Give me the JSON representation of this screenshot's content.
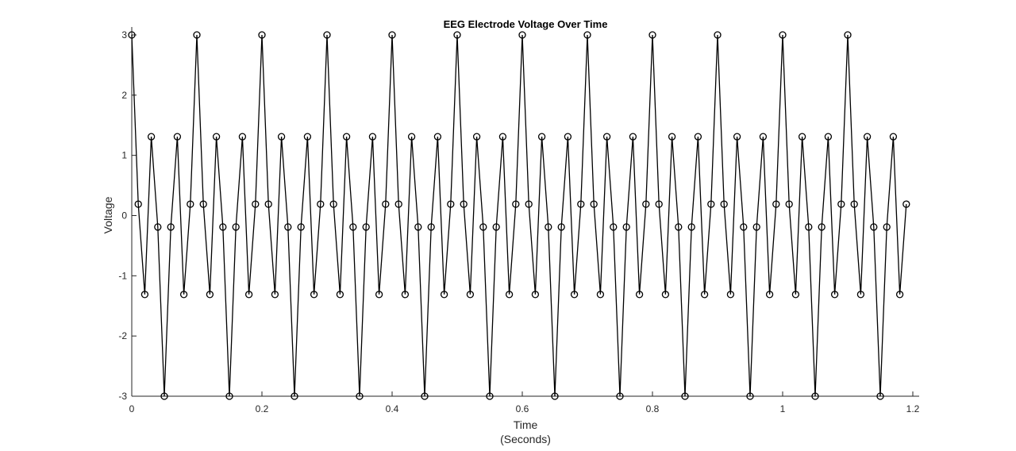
{
  "chart_data": {
    "type": "line",
    "title": "EEG Electrode Voltage Over Time",
    "xlabel": "Time",
    "xlabel_sub": "(Seconds)",
    "ylabel": "Voltage",
    "xlim": [
      0,
      1.2
    ],
    "ylim": [
      -3,
      3
    ],
    "xticks": [
      0,
      0.2,
      0.4,
      0.6,
      0.8,
      1,
      1.2
    ],
    "xtick_labels": [
      "0",
      "0.2",
      "0.4",
      "0.6",
      "0.8",
      "1",
      "1.2"
    ],
    "yticks": [
      -3,
      -2,
      -1,
      0,
      1,
      2,
      3
    ],
    "ytick_labels": [
      "-3",
      "-2",
      "-1",
      "0",
      "1",
      "2",
      "3"
    ],
    "grid": false,
    "marker": "circle",
    "line_color": "#000000",
    "series": [
      {
        "x": [
          0,
          0.01,
          0.02,
          0.03,
          0.04,
          0.05,
          0.06,
          0.07,
          0.08,
          0.09,
          0.1,
          0.11,
          0.12,
          0.13,
          0.14,
          0.15,
          0.16,
          0.17,
          0.18,
          0.19,
          0.2,
          0.21,
          0.22,
          0.23,
          0.24,
          0.25,
          0.26,
          0.27,
          0.28,
          0.29,
          0.3,
          0.31,
          0.32,
          0.33,
          0.34,
          0.35,
          0.36,
          0.37,
          0.38,
          0.39,
          0.4,
          0.41,
          0.42,
          0.43,
          0.44,
          0.45,
          0.46,
          0.47,
          0.48,
          0.49,
          0.5,
          0.51,
          0.52,
          0.53,
          0.54,
          0.55,
          0.56,
          0.57,
          0.58,
          0.59,
          0.6,
          0.61,
          0.62,
          0.63,
          0.64,
          0.65,
          0.66,
          0.67,
          0.68,
          0.69,
          0.7,
          0.71,
          0.72,
          0.73,
          0.74,
          0.75,
          0.76,
          0.77,
          0.78,
          0.79,
          0.8,
          0.81,
          0.82,
          0.83,
          0.84,
          0.85,
          0.86,
          0.87,
          0.88,
          0.89,
          0.9,
          0.91,
          0.92,
          0.93,
          0.94,
          0.95,
          0.96,
          0.97,
          0.98,
          0.99,
          1,
          1.01,
          1.02,
          1.03,
          1.04,
          1.05,
          1.06,
          1.07,
          1.08,
          1.09,
          1.1,
          1.11,
          1.12,
          1.13,
          1.14,
          1.15,
          1.16,
          1.17,
          1.18,
          1.19
        ],
        "y": [
          3,
          0.19,
          -1.31,
          1.31,
          -0.19,
          -3,
          -0.19,
          1.31,
          -1.31,
          0.19,
          3,
          0.19,
          -1.31,
          1.31,
          -0.19,
          -3,
          -0.19,
          1.31,
          -1.31,
          0.19,
          3,
          0.19,
          -1.31,
          1.31,
          -0.19,
          -3,
          -0.19,
          1.31,
          -1.31,
          0.19,
          3,
          0.19,
          -1.31,
          1.31,
          -0.19,
          -3,
          -0.19,
          1.31,
          -1.31,
          0.19,
          3,
          0.19,
          -1.31,
          1.31,
          -0.19,
          -3,
          -0.19,
          1.31,
          -1.31,
          0.19,
          3,
          0.19,
          -1.31,
          1.31,
          -0.19,
          -3,
          -0.19,
          1.31,
          -1.31,
          0.19,
          3,
          0.19,
          -1.31,
          1.31,
          -0.19,
          -3,
          -0.19,
          1.31,
          -1.31,
          0.19,
          3,
          0.19,
          -1.31,
          1.31,
          -0.19,
          -3,
          -0.19,
          1.31,
          -1.31,
          0.19,
          3,
          0.19,
          -1.31,
          1.31,
          -0.19,
          -3,
          -0.19,
          1.31,
          -1.31,
          0.19,
          3,
          0.19,
          -1.31,
          1.31,
          -0.19,
          -3,
          -0.19,
          1.31,
          -1.31,
          0.19,
          3,
          0.19,
          -1.31,
          1.31,
          -0.19,
          -3,
          -0.19,
          1.31,
          -1.31,
          0.19,
          3,
          0.19,
          -1.31,
          1.31,
          -0.19,
          -3,
          -0.19,
          1.31,
          -1.31,
          0.19
        ]
      }
    ]
  }
}
